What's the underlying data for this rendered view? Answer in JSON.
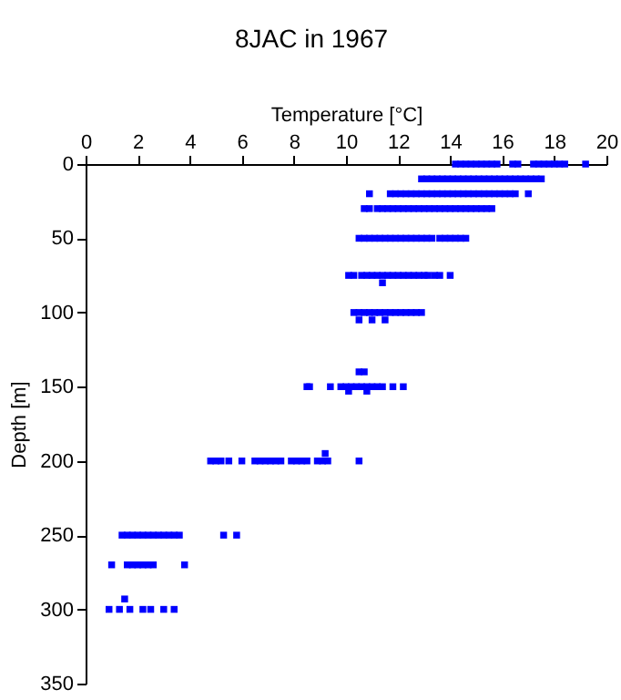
{
  "chart_data": {
    "type": "scatter",
    "title": "8JAC in 1967",
    "xlabel": "Temperature [°C]",
    "ylabel": "Depth [m]",
    "xlim": [
      0,
      20
    ],
    "xticks": [
      0,
      2,
      4,
      6,
      8,
      10,
      12,
      14,
      16,
      18,
      20
    ],
    "ylim": [
      350,
      0
    ],
    "yticks": [
      0,
      50,
      100,
      150,
      200,
      250,
      300,
      350
    ],
    "grid": false,
    "marker": "square",
    "series": [
      {
        "color": "#0000ff",
        "x": [
          14.2,
          14.4,
          14.6,
          14.8,
          15.0,
          15.2,
          15.4,
          15.6,
          15.8,
          16.4,
          16.6,
          17.2,
          17.4,
          17.6,
          17.8,
          18.0,
          18.2,
          18.4,
          19.2,
          12.9,
          13.1,
          13.3,
          13.5,
          13.7,
          13.9,
          14.1,
          14.3,
          14.5,
          14.7,
          14.9,
          15.1,
          15.3,
          15.5,
          15.7,
          15.9,
          16.1,
          16.3,
          16.5,
          16.7,
          16.9,
          17.1,
          17.3,
          17.5,
          10.9,
          11.7,
          11.9,
          12.1,
          12.3,
          12.5,
          12.7,
          12.9,
          13.1,
          13.3,
          13.5,
          13.7,
          13.9,
          14.1,
          14.3,
          14.5,
          14.7,
          14.9,
          15.1,
          15.3,
          15.5,
          15.7,
          15.9,
          16.1,
          16.3,
          16.5,
          17.0,
          10.7,
          10.9,
          11.2,
          11.4,
          11.6,
          11.8,
          12.0,
          12.2,
          12.4,
          12.6,
          12.8,
          13.0,
          13.2,
          13.4,
          13.6,
          13.8,
          14.0,
          14.2,
          14.4,
          14.6,
          14.8,
          15.0,
          15.2,
          15.4,
          15.6,
          10.5,
          10.7,
          10.9,
          11.1,
          11.3,
          11.5,
          11.7,
          11.9,
          12.1,
          12.3,
          12.5,
          12.7,
          12.9,
          13.1,
          13.3,
          13.6,
          13.8,
          14.0,
          14.2,
          14.4,
          14.6,
          10.1,
          10.3,
          10.6,
          10.8,
          11.0,
          11.2,
          11.4,
          11.6,
          11.8,
          12.0,
          12.2,
          12.4,
          12.6,
          12.8,
          13.0,
          13.15,
          13.4,
          13.6,
          14.0,
          11.4,
          10.3,
          10.5,
          10.7,
          10.9,
          11.1,
          11.3,
          11.5,
          11.7,
          11.9,
          12.1,
          12.3,
          12.5,
          12.7,
          12.9,
          10.5,
          11.0,
          11.5,
          10.5,
          10.7,
          8.5,
          8.6,
          9.4,
          9.8,
          10.0,
          10.2,
          10.4,
          10.6,
          10.8,
          11.0,
          11.2,
          11.4,
          11.8,
          12.2,
          10.1,
          10.8,
          4.8,
          5.0,
          5.2,
          5.5,
          6.0,
          6.5,
          6.7,
          6.9,
          7.1,
          7.3,
          7.5,
          7.9,
          8.1,
          8.3,
          8.5,
          8.9,
          9.1,
          9.3,
          10.5,
          9.2,
          1.4,
          1.6,
          1.8,
          2.0,
          2.2,
          2.4,
          2.6,
          2.8,
          3.0,
          3.2,
          3.4,
          3.6,
          5.3,
          5.8,
          1.0,
          1.6,
          1.8,
          2.0,
          2.2,
          2.4,
          2.6,
          3.8,
          0.9,
          1.3,
          1.7,
          2.2,
          2.5,
          3.0,
          3.4,
          1.5
        ],
        "values": [
          0,
          0,
          0,
          0,
          0,
          0,
          0,
          0,
          0,
          0,
          0,
          0,
          0,
          0,
          0,
          0,
          0,
          0,
          0,
          10,
          10,
          10,
          10,
          10,
          10,
          10,
          10,
          10,
          10,
          10,
          10,
          10,
          10,
          10,
          10,
          10,
          10,
          10,
          10,
          10,
          10,
          10,
          10,
          20,
          20,
          20,
          20,
          20,
          20,
          20,
          20,
          20,
          20,
          20,
          20,
          20,
          20,
          20,
          20,
          20,
          20,
          20,
          20,
          20,
          20,
          20,
          20,
          20,
          20,
          20,
          30,
          30,
          30,
          30,
          30,
          30,
          30,
          30,
          30,
          30,
          30,
          30,
          30,
          30,
          30,
          30,
          30,
          30,
          30,
          30,
          30,
          30,
          30,
          30,
          30,
          50,
          50,
          50,
          50,
          50,
          50,
          50,
          50,
          50,
          50,
          50,
          50,
          50,
          50,
          50,
          50,
          50,
          50,
          50,
          50,
          50,
          75,
          75,
          75,
          75,
          75,
          75,
          75,
          75,
          75,
          75,
          75,
          75,
          75,
          75,
          75,
          75,
          75,
          75,
          75,
          80,
          100,
          100,
          100,
          100,
          100,
          100,
          100,
          100,
          100,
          100,
          100,
          100,
          100,
          100,
          105,
          105,
          105,
          140,
          140,
          150,
          150,
          150,
          150,
          150,
          150,
          150,
          150,
          150,
          150,
          150,
          150,
          150,
          150,
          153,
          153,
          200,
          200,
          200,
          200,
          200,
          200,
          200,
          200,
          200,
          200,
          200,
          200,
          200,
          200,
          200,
          200,
          200,
          200,
          200,
          195,
          250,
          250,
          250,
          250,
          250,
          250,
          250,
          250,
          250,
          250,
          250,
          250,
          250,
          250,
          270,
          270,
          270,
          270,
          270,
          270,
          270,
          270,
          300,
          300,
          300,
          300,
          300,
          300,
          300,
          293
        ]
      }
    ]
  }
}
